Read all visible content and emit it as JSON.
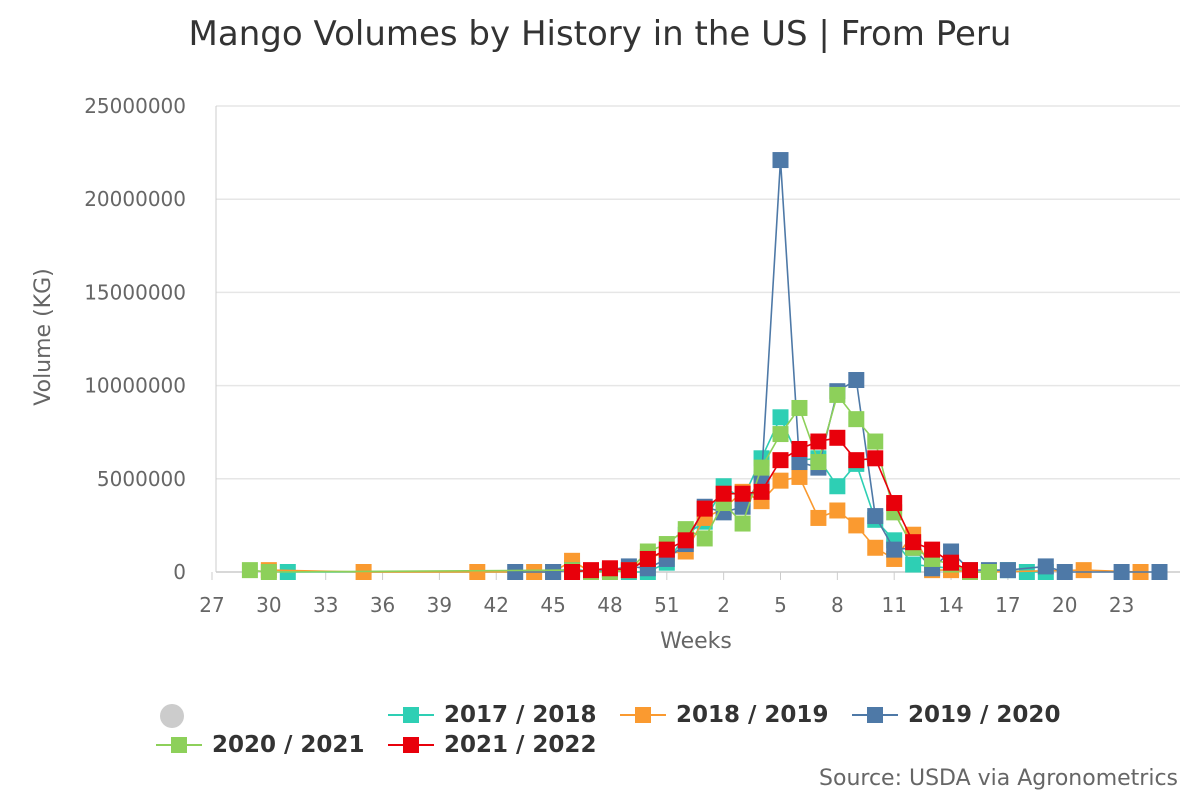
{
  "title": "Mango Volumes by History in the US | From Peru",
  "source_note": "Source: USDA via Agronometrics",
  "chart_data": {
    "type": "line",
    "title": "Mango Volumes by History in the US | From Peru",
    "xlabel": "Weeks",
    "ylabel": "Volume (KG)",
    "ylim": [
      0,
      25000000
    ],
    "yticks": [
      0,
      5000000,
      10000000,
      15000000,
      20000000,
      25000000
    ],
    "xticks": [
      "27",
      "30",
      "33",
      "36",
      "39",
      "42",
      "45",
      "48",
      "51",
      "2",
      "5",
      "8",
      "11",
      "14",
      "17",
      "20",
      "23"
    ],
    "x_categories": [
      "27",
      "28",
      "29",
      "30",
      "31",
      "32",
      "33",
      "34",
      "35",
      "36",
      "37",
      "38",
      "39",
      "40",
      "41",
      "42",
      "43",
      "44",
      "45",
      "46",
      "47",
      "48",
      "49",
      "50",
      "51",
      "52",
      "1",
      "2",
      "3",
      "4",
      "5",
      "6",
      "7",
      "8",
      "9",
      "10",
      "11",
      "12",
      "13",
      "14",
      "15",
      "16",
      "17",
      "18",
      "19",
      "20",
      "21",
      "22",
      "23",
      "24",
      "25"
    ],
    "grid": true,
    "legend_position": "bottom",
    "series": [
      {
        "name": "2017 / 2018",
        "color": "#2ecfb4",
        "points": [
          [
            "31",
            0
          ],
          [
            "45",
            0
          ],
          [
            "46",
            200000
          ],
          [
            "47",
            0
          ],
          [
            "48",
            100000
          ],
          [
            "49",
            0
          ],
          [
            "50",
            0
          ],
          [
            "51",
            500000
          ],
          [
            "52",
            2000000
          ],
          [
            "1",
            2700000
          ],
          [
            "2",
            4600000
          ],
          [
            "3",
            3900000
          ],
          [
            "4",
            6100000
          ],
          [
            "5",
            8300000
          ],
          [
            "6",
            6000000
          ],
          [
            "7",
            6100000
          ],
          [
            "8",
            4600000
          ],
          [
            "9",
            5800000
          ],
          [
            "10",
            2800000
          ],
          [
            "11",
            1700000
          ],
          [
            "12",
            400000
          ],
          [
            "13",
            300000
          ],
          [
            "14",
            200000
          ],
          [
            "15",
            0
          ],
          [
            "16",
            0
          ],
          [
            "17",
            100000
          ],
          [
            "18",
            0
          ],
          [
            "19",
            0
          ]
        ]
      },
      {
        "name": "2018 / 2019",
        "color": "#fa9a30",
        "points": [
          [
            "30",
            100000
          ],
          [
            "35",
            0
          ],
          [
            "41",
            0
          ],
          [
            "44",
            0
          ],
          [
            "45",
            0
          ],
          [
            "46",
            600000
          ],
          [
            "47",
            0
          ],
          [
            "48",
            100000
          ],
          [
            "49",
            100000
          ],
          [
            "50",
            800000
          ],
          [
            "51",
            1000000
          ],
          [
            "52",
            1100000
          ],
          [
            "1",
            2900000
          ],
          [
            "2",
            3400000
          ],
          [
            "3",
            4300000
          ],
          [
            "4",
            3800000
          ],
          [
            "5",
            4900000
          ],
          [
            "6",
            5100000
          ],
          [
            "7",
            2900000
          ],
          [
            "8",
            3300000
          ],
          [
            "9",
            2500000
          ],
          [
            "10",
            1300000
          ],
          [
            "11",
            700000
          ],
          [
            "12",
            2000000
          ],
          [
            "13",
            100000
          ],
          [
            "14",
            100000
          ],
          [
            "15",
            0
          ],
          [
            "16",
            0
          ],
          [
            "21",
            100000
          ],
          [
            "24",
            0
          ]
        ]
      },
      {
        "name": "2019 / 2020",
        "color": "#4e79a7",
        "points": [
          [
            "43",
            0
          ],
          [
            "45",
            0
          ],
          [
            "46",
            100000
          ],
          [
            "47",
            0
          ],
          [
            "48",
            100000
          ],
          [
            "49",
            300000
          ],
          [
            "50",
            200000
          ],
          [
            "51",
            700000
          ],
          [
            "52",
            1500000
          ],
          [
            "1",
            3500000
          ],
          [
            "2",
            3200000
          ],
          [
            "3",
            3500000
          ],
          [
            "4",
            5000000
          ],
          [
            "5",
            22100000
          ],
          [
            "6",
            5900000
          ],
          [
            "7",
            5600000
          ],
          [
            "8",
            9700000
          ],
          [
            "9",
            10300000
          ],
          [
            "10",
            3000000
          ],
          [
            "11",
            1200000
          ],
          [
            "12",
            1300000
          ],
          [
            "13",
            200000
          ],
          [
            "14",
            1100000
          ],
          [
            "15",
            100000
          ],
          [
            "16",
            100000
          ],
          [
            "17",
            100000
          ],
          [
            "19",
            300000
          ],
          [
            "20",
            0
          ],
          [
            "23",
            0
          ],
          [
            "25",
            0
          ]
        ]
      },
      {
        "name": "2020 / 2021",
        "color": "#8dd05a",
        "points": [
          [
            "29",
            100000
          ],
          [
            "30",
            0
          ],
          [
            "46",
            100000
          ],
          [
            "47",
            0
          ],
          [
            "48",
            0
          ],
          [
            "49",
            100000
          ],
          [
            "50",
            1100000
          ],
          [
            "51",
            1500000
          ],
          [
            "52",
            2300000
          ],
          [
            "1",
            1800000
          ],
          [
            "2",
            3700000
          ],
          [
            "3",
            2600000
          ],
          [
            "4",
            5600000
          ],
          [
            "5",
            7400000
          ],
          [
            "6",
            8800000
          ],
          [
            "7",
            5900000
          ],
          [
            "8",
            9500000
          ],
          [
            "9",
            8200000
          ],
          [
            "10",
            7000000
          ],
          [
            "11",
            3200000
          ],
          [
            "12",
            1300000
          ],
          [
            "13",
            700000
          ],
          [
            "14",
            400000
          ],
          [
            "15",
            0
          ],
          [
            "16",
            0
          ]
        ]
      },
      {
        "name": "2021 / 2022",
        "color": "#e8000b",
        "points": [
          [
            "46",
            0
          ],
          [
            "47",
            100000
          ],
          [
            "48",
            200000
          ],
          [
            "49",
            100000
          ],
          [
            "50",
            700000
          ],
          [
            "51",
            1200000
          ],
          [
            "52",
            1700000
          ],
          [
            "1",
            3400000
          ],
          [
            "2",
            4200000
          ],
          [
            "3",
            4200000
          ],
          [
            "4",
            4300000
          ],
          [
            "5",
            6000000
          ],
          [
            "6",
            6600000
          ],
          [
            "7",
            7000000
          ],
          [
            "8",
            7200000
          ],
          [
            "9",
            6000000
          ],
          [
            "10",
            6100000
          ],
          [
            "11",
            3700000
          ],
          [
            "12",
            1600000
          ],
          [
            "13",
            1200000
          ],
          [
            "14",
            500000
          ],
          [
            "15",
            100000
          ]
        ]
      }
    ]
  },
  "legend": {
    "items": [
      {
        "label": "2017 / 2018",
        "color": "#2ecfb4"
      },
      {
        "label": "2018 / 2019",
        "color": "#fa9a30"
      },
      {
        "label": "2019 / 2020",
        "color": "#4e79a7"
      },
      {
        "label": "2020 / 2021",
        "color": "#8dd05a"
      },
      {
        "label": "2021 / 2022",
        "color": "#e8000b"
      }
    ]
  }
}
